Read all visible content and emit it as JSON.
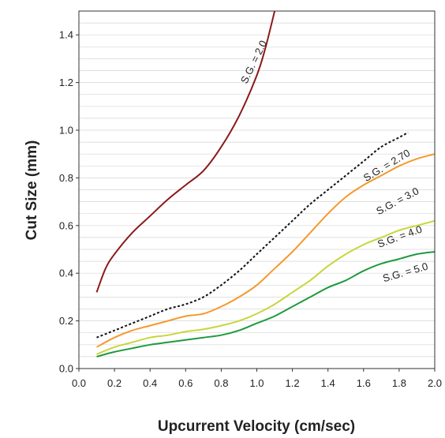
{
  "chart_data": {
    "type": "line",
    "xlabel": "Upcurrent Velocity (cm/sec)",
    "ylabel": "Cut Size (mm)",
    "xlim": [
      0.0,
      2.0
    ],
    "ylim": [
      0.0,
      1.5
    ],
    "x_ticks": [
      "0.0",
      "0.2",
      "0.4",
      "0.6",
      "0.8",
      "1.0",
      "1.2",
      "1.4",
      "1.6",
      "1.8",
      "2.0"
    ],
    "y_ticks": [
      "0.0",
      "0.2",
      "0.4",
      "0.6",
      "0.8",
      "1.0",
      "1.2",
      "1.4"
    ],
    "grid": "horizontal minor lines",
    "legend": "none (curves labelled inline)",
    "series": [
      {
        "name": "S.G. = 2.0",
        "color": "#8B1A1A",
        "dash": "solid",
        "x": [
          0.1,
          0.15,
          0.2,
          0.3,
          0.4,
          0.5,
          0.6,
          0.7,
          0.8,
          0.9,
          1.0,
          1.05,
          1.1
        ],
        "y": [
          0.32,
          0.42,
          0.48,
          0.57,
          0.64,
          0.71,
          0.77,
          0.83,
          0.93,
          1.06,
          1.23,
          1.35,
          1.5
        ]
      },
      {
        "name": "S.G. = 2.70",
        "color": "#111111",
        "dash": "dotted",
        "x": [
          0.1,
          0.2,
          0.3,
          0.4,
          0.5,
          0.6,
          0.7,
          0.8,
          0.9,
          1.0,
          1.1,
          1.2,
          1.3,
          1.4,
          1.5,
          1.6,
          1.7,
          1.8,
          1.85
        ],
        "y": [
          0.13,
          0.16,
          0.19,
          0.22,
          0.25,
          0.27,
          0.3,
          0.35,
          0.41,
          0.48,
          0.55,
          0.62,
          0.69,
          0.75,
          0.81,
          0.87,
          0.93,
          0.97,
          0.99
        ]
      },
      {
        "name": "S.G. = 3.0",
        "color": "#F39A2E",
        "dash": "solid",
        "x": [
          0.1,
          0.2,
          0.3,
          0.4,
          0.5,
          0.6,
          0.7,
          0.8,
          0.9,
          1.0,
          1.1,
          1.2,
          1.3,
          1.4,
          1.5,
          1.6,
          1.7,
          1.8,
          1.9,
          2.0
        ],
        "y": [
          0.09,
          0.13,
          0.16,
          0.18,
          0.2,
          0.22,
          0.23,
          0.26,
          0.3,
          0.35,
          0.42,
          0.49,
          0.57,
          0.65,
          0.72,
          0.77,
          0.81,
          0.85,
          0.88,
          0.9
        ]
      },
      {
        "name": "S.G. = 4.0",
        "color": "#C8D63A",
        "dash": "solid",
        "x": [
          0.1,
          0.2,
          0.3,
          0.4,
          0.5,
          0.6,
          0.7,
          0.8,
          0.9,
          1.0,
          1.1,
          1.2,
          1.3,
          1.4,
          1.5,
          1.6,
          1.7,
          1.8,
          1.9,
          2.0
        ],
        "y": [
          0.06,
          0.09,
          0.11,
          0.13,
          0.14,
          0.155,
          0.165,
          0.18,
          0.2,
          0.23,
          0.27,
          0.32,
          0.37,
          0.43,
          0.48,
          0.52,
          0.55,
          0.58,
          0.6,
          0.62
        ]
      },
      {
        "name": "S.G. = 5.0",
        "color": "#1E9A3E",
        "dash": "solid",
        "x": [
          0.1,
          0.2,
          0.3,
          0.4,
          0.5,
          0.6,
          0.7,
          0.8,
          0.9,
          1.0,
          1.1,
          1.2,
          1.3,
          1.4,
          1.5,
          1.6,
          1.7,
          1.8,
          1.9,
          2.0
        ],
        "y": [
          0.05,
          0.07,
          0.085,
          0.1,
          0.11,
          0.12,
          0.13,
          0.14,
          0.16,
          0.19,
          0.22,
          0.26,
          0.3,
          0.34,
          0.37,
          0.41,
          0.44,
          0.46,
          0.48,
          0.49
        ]
      }
    ]
  }
}
